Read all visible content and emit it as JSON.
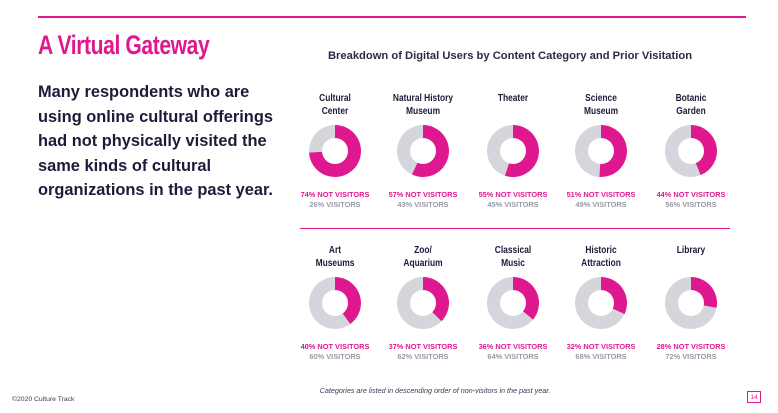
{
  "slide": {
    "title": "A Virtual Gateway",
    "lead": "Many respondents who are using online cultural offerings had not physically visited the same kinds of cultural organizations in the past year.",
    "footnote": "Categories are listed in descending  order of non-visitors in the past year.",
    "copyright": "©2020 Culture Track",
    "page_number": "14"
  },
  "colors": {
    "accent": "#e0188f",
    "visitors": "#d4d6db",
    "text": "#1c1c3a"
  },
  "chart_data": {
    "type": "pie",
    "variant": "donut",
    "title": "Breakdown of Digital Users by Content Category and Prior Visitation",
    "series": [
      {
        "name": "NOT VISITORS",
        "color": "#e0188f"
      },
      {
        "name": "VISITORS",
        "color": "#d4d6db"
      }
    ],
    "items": [
      {
        "category": "Cultural\nCenter",
        "not_visitors": 74,
        "visitors": 26,
        "not_label": "74% NOT VISITORS",
        "vis_label": "26% VISITORS"
      },
      {
        "category": "Natural History\nMuseum",
        "not_visitors": 57,
        "visitors": 43,
        "not_label": "57% NOT VISITORS",
        "vis_label": "43% VISITORS"
      },
      {
        "category": "Theater",
        "not_visitors": 55,
        "visitors": 45,
        "not_label": "55% NOT VISITORS",
        "vis_label": "45% VISITORS"
      },
      {
        "category": "Science\nMuseum",
        "not_visitors": 51,
        "visitors": 49,
        "not_label": "51% NOT VISITORS",
        "vis_label": "49% VISITORS"
      },
      {
        "category": "Botanic\nGarden",
        "not_visitors": 44,
        "visitors": 56,
        "not_label": "44% NOT VISITORS",
        "vis_label": "56% VISITORS"
      },
      {
        "category": "Art\nMuseums",
        "not_visitors": 40,
        "visitors": 60,
        "not_label": "40% NOT VISITORS",
        "vis_label": "60% VISITORS"
      },
      {
        "category": "Zoo/\nAquarium",
        "not_visitors": 37,
        "visitors": 62,
        "not_label": "37% NOT VISITORS",
        "vis_label": "62% VISITORS"
      },
      {
        "category": "Classical\nMusic",
        "not_visitors": 36,
        "visitors": 64,
        "not_label": "36% NOT VISITORS",
        "vis_label": "64% VISITORS"
      },
      {
        "category": "Historic\nAttraction",
        "not_visitors": 32,
        "visitors": 68,
        "not_label": "32% NOT VISITORS",
        "vis_label": "68% VISITORS"
      },
      {
        "category": "Library",
        "not_visitors": 28,
        "visitors": 72,
        "not_label": "28% NOT VISITORS",
        "vis_label": "72% VISITORS"
      }
    ]
  }
}
